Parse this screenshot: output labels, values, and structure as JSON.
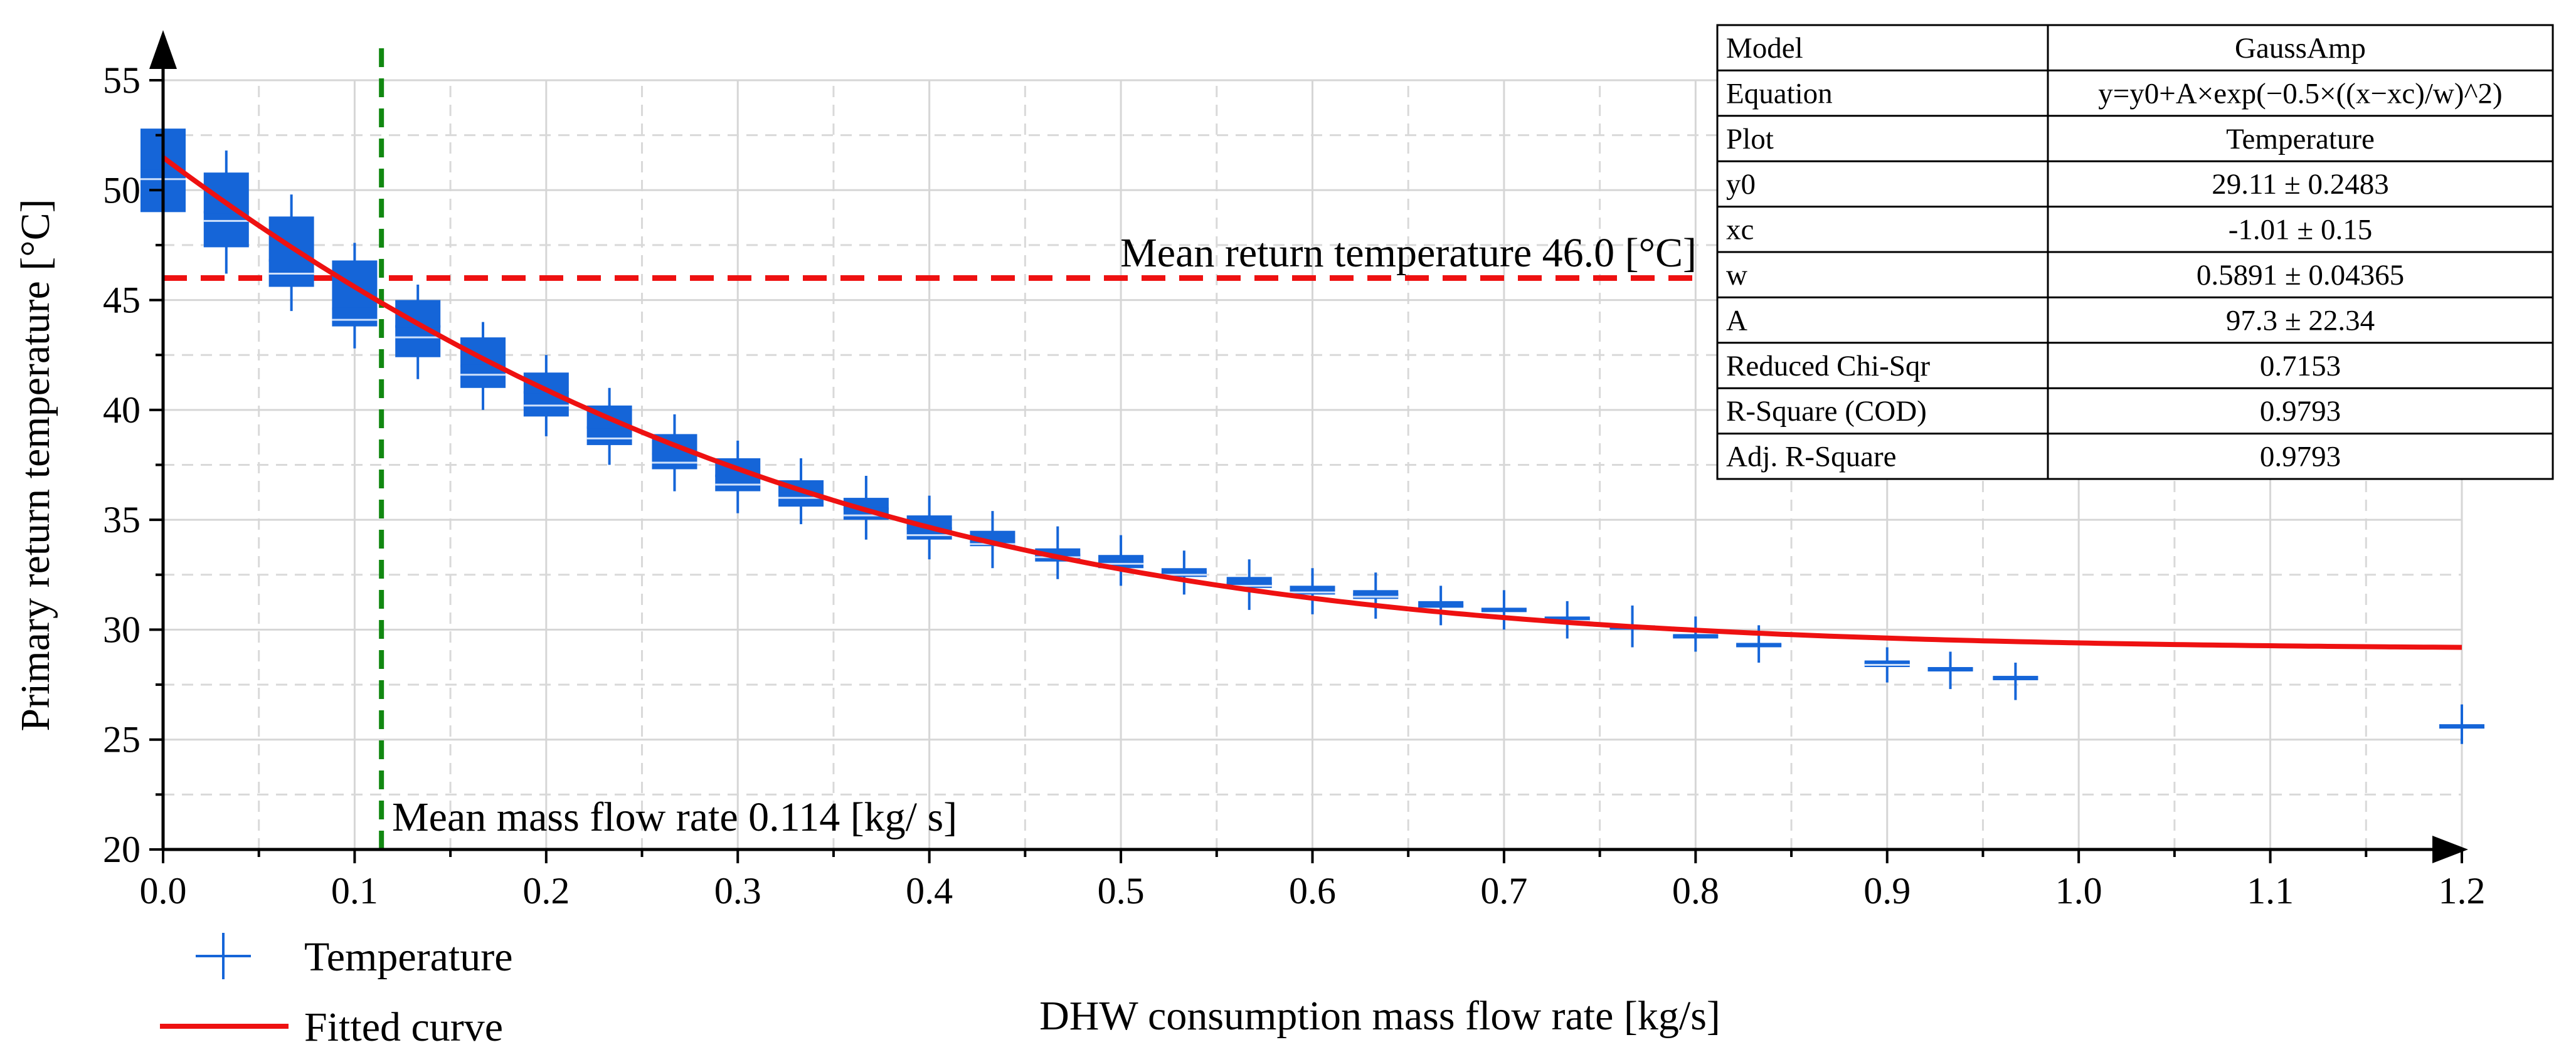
{
  "chart_data": {
    "type": "box",
    "xlabel": "DHW consumption mass flow rate [kg/s]",
    "ylabel": "Primary return temperature [°C]",
    "xlim": [
      0.0,
      1.2
    ],
    "ylim": [
      20,
      55
    ],
    "x_ticks": [
      0.0,
      0.1,
      0.2,
      0.3,
      0.4,
      0.5,
      0.6,
      0.7,
      0.8,
      0.9,
      1.0,
      1.1,
      1.2
    ],
    "x_tick_labels": [
      "0.0",
      "0.1",
      "0.2",
      "0.3",
      "0.4",
      "0.5",
      "0.6",
      "0.7",
      "0.8",
      "0.9",
      "1.0",
      "1.1",
      "1.2"
    ],
    "y_ticks": [
      20,
      25,
      30,
      35,
      40,
      45,
      50,
      55
    ],
    "y_tick_labels": [
      "20",
      "25",
      "30",
      "35",
      "40",
      "45",
      "50",
      "55"
    ],
    "grid": true,
    "series": [
      {
        "name": "Temperature",
        "color": "#1565d8",
        "boxes": [
          {
            "x": 0.0,
            "q1": 49.0,
            "q3": 52.8,
            "mean": 51.0,
            "median": 50.5,
            "min": 48.8,
            "max": 53.2
          },
          {
            "x": 0.033,
            "q1": 47.4,
            "q3": 50.8,
            "mean": 49.0,
            "median": 48.6,
            "min": 46.2,
            "max": 51.8
          },
          {
            "x": 0.067,
            "q1": 45.6,
            "q3": 48.8,
            "mean": 46.8,
            "median": 46.2,
            "min": 44.5,
            "max": 49.8
          },
          {
            "x": 0.1,
            "q1": 43.8,
            "q3": 46.8,
            "mean": 44.6,
            "median": 44.1,
            "min": 42.8,
            "max": 47.6
          },
          {
            "x": 0.133,
            "q1": 42.4,
            "q3": 45.0,
            "mean": 43.8,
            "median": 43.3,
            "min": 41.4,
            "max": 45.7
          },
          {
            "x": 0.167,
            "q1": 41.0,
            "q3": 43.3,
            "mean": 42.0,
            "median": 41.6,
            "min": 40.0,
            "max": 44.0
          },
          {
            "x": 0.2,
            "q1": 39.7,
            "q3": 41.7,
            "mean": 40.8,
            "median": 40.2,
            "min": 38.8,
            "max": 42.5
          },
          {
            "x": 0.233,
            "q1": 38.4,
            "q3": 40.2,
            "mean": 39.2,
            "median": 38.7,
            "min": 37.5,
            "max": 41.0
          },
          {
            "x": 0.267,
            "q1": 37.3,
            "q3": 38.9,
            "mean": 38.0,
            "median": 37.6,
            "min": 36.3,
            "max": 39.8
          },
          {
            "x": 0.3,
            "q1": 36.3,
            "q3": 37.8,
            "mean": 37.0,
            "median": 36.6,
            "min": 35.3,
            "max": 38.6
          },
          {
            "x": 0.333,
            "q1": 35.6,
            "q3": 36.8,
            "mean": 36.3,
            "median": 36.0,
            "min": 34.8,
            "max": 37.8
          },
          {
            "x": 0.367,
            "q1": 35.0,
            "q3": 36.0,
            "mean": 35.5,
            "median": 35.2,
            "min": 34.1,
            "max": 37.0
          },
          {
            "x": 0.4,
            "q1": 34.1,
            "q3": 35.2,
            "mean": 34.6,
            "median": 34.3,
            "min": 33.2,
            "max": 36.1
          },
          {
            "x": 0.433,
            "q1": 33.8,
            "q3": 34.5,
            "mean": 34.0,
            "median": 33.9,
            "min": 32.8,
            "max": 35.4
          },
          {
            "x": 0.467,
            "q1": 33.1,
            "q3": 33.7,
            "mean": 33.4,
            "median": 33.3,
            "min": 32.3,
            "max": 34.7
          },
          {
            "x": 0.5,
            "q1": 32.8,
            "q3": 33.4,
            "mean": 33.1,
            "median": 33.0,
            "min": 32.0,
            "max": 34.3
          },
          {
            "x": 0.533,
            "q1": 32.4,
            "q3": 32.8,
            "mean": 32.6,
            "median": 32.5,
            "min": 31.6,
            "max": 33.6
          },
          {
            "x": 0.567,
            "q1": 31.9,
            "q3": 32.4,
            "mean": 32.1,
            "median": 32.0,
            "min": 30.9,
            "max": 33.2
          },
          {
            "x": 0.6,
            "q1": 31.6,
            "q3": 32.0,
            "mean": 31.8,
            "median": 31.7,
            "min": 30.7,
            "max": 32.8
          },
          {
            "x": 0.633,
            "q1": 31.4,
            "q3": 31.8,
            "mean": 31.6,
            "median": 31.5,
            "min": 30.5,
            "max": 32.6
          },
          {
            "x": 0.667,
            "q1": 31.0,
            "q3": 31.3,
            "mean": 31.1,
            "median": 31.1,
            "min": 30.2,
            "max": 32.0
          },
          {
            "x": 0.7,
            "q1": 30.8,
            "q3": 31.0,
            "mean": 30.9,
            "median": 30.9,
            "min": 30.0,
            "max": 31.8
          },
          {
            "x": 0.733,
            "q1": 30.3,
            "q3": 30.6,
            "mean": 30.5,
            "median": 30.4,
            "min": 29.6,
            "max": 31.3
          },
          {
            "x": 0.767,
            "q1": 30.0,
            "q3": 30.2,
            "mean": 30.1,
            "median": 30.1,
            "min": 29.2,
            "max": 31.1
          },
          {
            "x": 0.8,
            "q1": 29.6,
            "q3": 29.8,
            "mean": 29.7,
            "median": 29.7,
            "min": 29.0,
            "max": 30.6
          },
          {
            "x": 0.833,
            "q1": 29.2,
            "q3": 29.4,
            "mean": 29.3,
            "median": 29.3,
            "min": 28.5,
            "max": 30.2
          },
          {
            "x": 0.9,
            "q1": 28.3,
            "q3": 28.6,
            "mean": 28.5,
            "median": 28.4,
            "min": 27.6,
            "max": 29.2
          },
          {
            "x": 0.933,
            "q1": 28.1,
            "q3": 28.3,
            "mean": 28.2,
            "median": 28.2,
            "min": 27.3,
            "max": 29.0
          },
          {
            "x": 0.967,
            "q1": 27.7,
            "q3": 27.9,
            "mean": 27.8,
            "median": 27.8,
            "min": 26.8,
            "max": 28.5
          },
          {
            "x": 1.2,
            "q1": 25.5,
            "q3": 25.7,
            "mean": 25.6,
            "median": 25.6,
            "min": 24.8,
            "max": 26.6
          }
        ]
      },
      {
        "name": "Fitted curve",
        "type": "line",
        "color": "#ee1111",
        "model": "GaussAmp",
        "params": {
          "y0": 29.11,
          "xc": -1.01,
          "w": 0.5891,
          "A": 97.3
        }
      }
    ],
    "reference_lines": [
      {
        "orientation": "horizontal",
        "value": 46.0,
        "color": "#ee1111",
        "style": "dashed",
        "label": "Mean return temperature 46.0 [°C]"
      },
      {
        "orientation": "vertical",
        "value": 0.114,
        "color": "#118811",
        "style": "dashed",
        "label": "Mean mass flow rate 0.114 [kg/ s]"
      }
    ],
    "legend": {
      "position": "bottom-left",
      "items": [
        {
          "label": "Temperature",
          "symbol": "+",
          "color": "#1565d8"
        },
        {
          "label": "Fitted curve",
          "symbol": "line",
          "color": "#ee1111"
        }
      ]
    },
    "fit_table": [
      [
        "Model",
        "GaussAmp"
      ],
      [
        "Equation",
        "y=y0+A×exp(−0.5×((x−xc)/w)^2)"
      ],
      [
        "Plot",
        "Temperature"
      ],
      [
        "y0",
        "29.11 ± 0.2483"
      ],
      [
        "xc",
        "-1.01 ± 0.15"
      ],
      [
        "w",
        "0.5891 ± 0.04365"
      ],
      [
        "A",
        "97.3 ± 22.34"
      ],
      [
        "Reduced Chi-Sqr",
        "0.7153"
      ],
      [
        "R-Square (COD)",
        "0.9793"
      ],
      [
        "Adj. R-Square",
        "0.9793"
      ]
    ]
  }
}
